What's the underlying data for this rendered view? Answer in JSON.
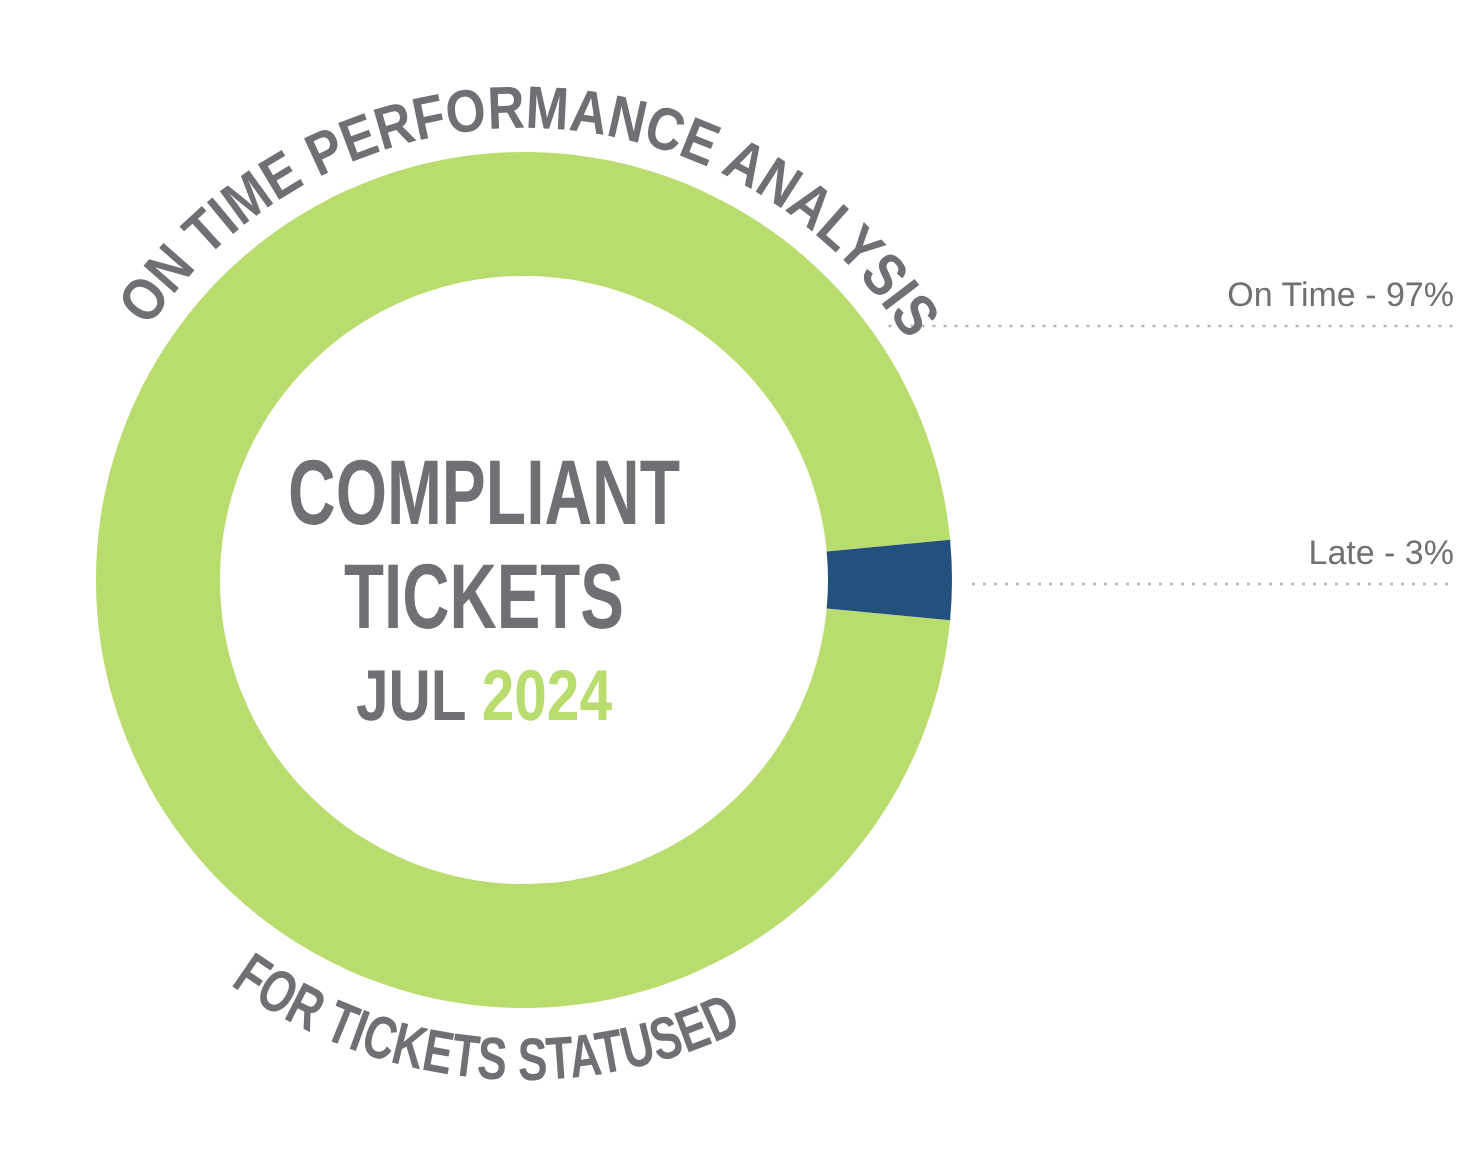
{
  "chart_data": {
    "type": "donut",
    "title": "ON TIME PERFORMANCE ANALYSIS",
    "subtitle": "FOR TICKETS STATUSED",
    "categories": [
      "On Time - 97%",
      "Late - 3%"
    ],
    "values": [
      97,
      3
    ],
    "colors": [
      "#b8dd6e",
      "#24507e"
    ],
    "annotations": [
      "COMPLIANT",
      "TICKETS",
      "JUL",
      "2024"
    ]
  }
}
